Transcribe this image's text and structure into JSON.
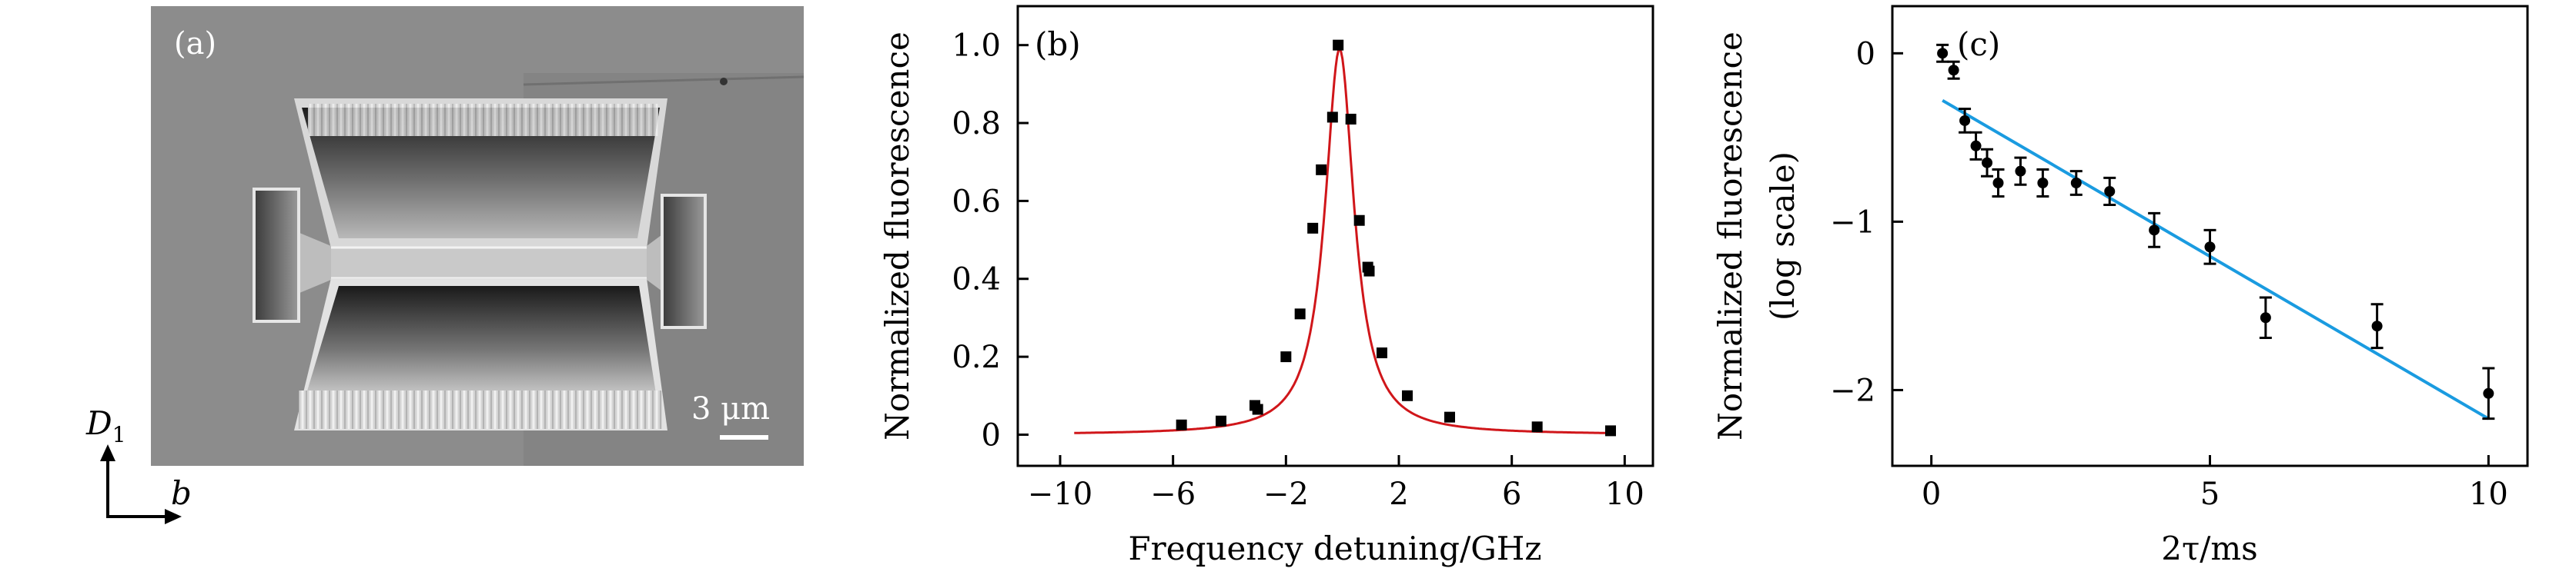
{
  "panel_a": {
    "label": "(a)",
    "scale_bar_text": "3 μm",
    "axis_d_main": "D",
    "axis_d_sub": "1",
    "axis_b": "b"
  },
  "colors": {
    "fit_b": "#d0161a",
    "fit_c": "#1a9be0",
    "points": "#000000"
  },
  "chart_data": [
    {
      "type": "scatter",
      "panel": "(b)",
      "title": "",
      "xlabel": "Frequency detuning/GHz",
      "ylabel": "Normalized fluorescence",
      "xlim": [
        -11.5,
        11
      ],
      "ylim": [
        -0.08,
        1.1
      ],
      "xticks": [
        -10,
        -6,
        -2,
        2,
        6,
        10
      ],
      "xticklabels": [
        "−10",
        "−6",
        "−2",
        "2",
        "6",
        "10"
      ],
      "yticks": [
        0,
        0.2,
        0.4,
        0.6,
        0.8,
        1.0
      ],
      "yticklabels": [
        "0",
        "0.2",
        "0.4",
        "0.6",
        "0.8",
        "1.0"
      ],
      "x": [
        -5.7,
        -4.3,
        -3.1,
        -3.0,
        -2.0,
        -1.5,
        -1.05,
        -0.75,
        -0.35,
        -0.15,
        0.3,
        0.6,
        0.9,
        0.95,
        1.4,
        2.3,
        3.8,
        6.9,
        9.5
      ],
      "y": [
        0.025,
        0.035,
        0.075,
        0.065,
        0.2,
        0.31,
        0.53,
        0.68,
        0.815,
        1.0,
        0.81,
        0.55,
        0.43,
        0.42,
        0.21,
        0.1,
        0.045,
        0.02,
        0.01
      ],
      "fit": {
        "type": "lorentzian",
        "center": -0.1,
        "fwhm": 1.25,
        "amplitude": 0.99,
        "offset": 0.0,
        "color_key": "fit_b"
      }
    },
    {
      "type": "scatter",
      "panel": "(c)",
      "title": "",
      "xlabel": "2τ/ms",
      "ylabel": "Normalized fluorescence",
      "ylabel2": "(log scale)",
      "xlim": [
        -0.7,
        10.7
      ],
      "ylim": [
        -2.45,
        0.28
      ],
      "xticks": [
        0,
        5,
        10
      ],
      "xticklabels": [
        "0",
        "5",
        "10"
      ],
      "yticks": [
        0,
        -1,
        -2
      ],
      "yticklabels": [
        "0",
        "−1",
        "−2"
      ],
      "x": [
        0.2,
        0.4,
        0.6,
        0.8,
        1.0,
        1.2,
        1.6,
        2.0,
        2.6,
        3.2,
        4.0,
        5.0,
        6.0,
        8.0,
        10.0
      ],
      "y": [
        0.0,
        -0.1,
        -0.4,
        -0.55,
        -0.65,
        -0.77,
        -0.7,
        -0.77,
        -0.77,
        -0.82,
        -1.05,
        -1.15,
        -1.57,
        -1.62,
        -2.02
      ],
      "yerr": [
        0.05,
        0.05,
        0.07,
        0.08,
        0.08,
        0.08,
        0.08,
        0.08,
        0.07,
        0.08,
        0.1,
        0.1,
        0.12,
        0.13,
        0.15
      ],
      "fit": {
        "type": "linear",
        "x0": 0.2,
        "y0": -0.28,
        "x1": 10.0,
        "y1": -2.17,
        "color_key": "fit_c"
      }
    }
  ]
}
